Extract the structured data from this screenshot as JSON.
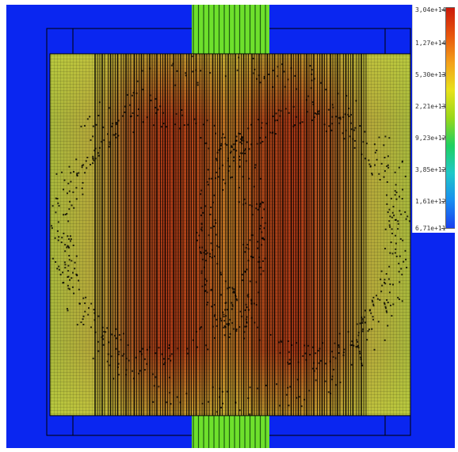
{
  "legend": {
    "ticks": [
      "3,04e+14",
      "1,27e+14",
      "5,30e+13",
      "2,21e+13",
      "9,23e+12",
      "3,85e+12",
      "1,61e+12",
      "6,71e+11"
    ],
    "colormap": [
      "#cc1a0a",
      "#e8550c",
      "#f4a11a",
      "#e8e21a",
      "#9ad81a",
      "#1fd060",
      "#1fc8c8",
      "#1a8ef0",
      "#1a40f0"
    ],
    "scale": "log"
  },
  "colors": {
    "background": "#0a26f0",
    "high": "#b42c16",
    "mid": "#c8621e",
    "low": "#a4b43a",
    "rod": "#72e22e",
    "mesh_line": "#000000"
  },
  "elements": {
    "main_block": "mesh-block",
    "rods_top": "rod-bundle-top",
    "rods_bottom": "rod-bundle-bottom"
  }
}
